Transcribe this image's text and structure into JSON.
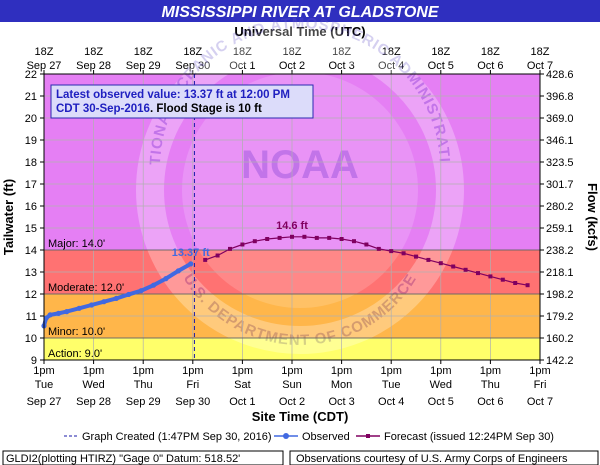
{
  "chart_data": {
    "type": "line",
    "title": "MISSISSIPPI RIVER AT GLADSTONE",
    "top_axis_title": "Universal Time (UTC)",
    "bottom_axis_title": "Site Time (CDT)",
    "ylabel_left": "Tailwater (ft)",
    "ylabel_right": "Flow (kcfs)",
    "ylim": [
      9,
      22
    ],
    "y_ticks": [
      "9",
      "10",
      "11",
      "12",
      "13",
      "14",
      "15",
      "16",
      "17",
      "18",
      "19",
      "20",
      "21",
      "22"
    ],
    "y_right_ticks": [
      "142.2",
      "160.2",
      "179.2",
      "198.2",
      "218.1",
      "238.2",
      "259.1",
      "280.2",
      "301.7",
      "323.5",
      "346.1",
      "369.0",
      "396.8",
      "428.6"
    ],
    "top_ticks": [
      {
        "line1": "18Z",
        "line2": "Sep 27"
      },
      {
        "line1": "18Z",
        "line2": "Sep 28"
      },
      {
        "line1": "18Z",
        "line2": "Sep 29"
      },
      {
        "line1": "18Z",
        "line2": "Sep 30"
      },
      {
        "line1": "18Z",
        "line2": "Oct 1"
      },
      {
        "line1": "18Z",
        "line2": "Oct 2"
      },
      {
        "line1": "18Z",
        "line2": "Oct 3"
      },
      {
        "line1": "18Z",
        "line2": "Oct 4"
      },
      {
        "line1": "18Z",
        "line2": "Oct 5"
      },
      {
        "line1": "18Z",
        "line2": "Oct 6"
      },
      {
        "line1": "18Z",
        "line2": "Oct 7"
      }
    ],
    "bottom_ticks": [
      {
        "line1": "1pm",
        "line2": "Tue",
        "line3": "Sep 27"
      },
      {
        "line1": "1pm",
        "line2": "Wed",
        "line3": "Sep 28"
      },
      {
        "line1": "1pm",
        "line2": "Thu",
        "line3": "Sep 29"
      },
      {
        "line1": "1pm",
        "line2": "Fri",
        "line3": "Sep 30"
      },
      {
        "line1": "1pm",
        "line2": "Sat",
        "line3": "Oct 1"
      },
      {
        "line1": "1pm",
        "line2": "Sun",
        "line3": "Oct 2"
      },
      {
        "line1": "1pm",
        "line2": "Mon",
        "line3": "Oct 3"
      },
      {
        "line1": "1pm",
        "line2": "Tue",
        "line3": "Oct 4"
      },
      {
        "line1": "1pm",
        "line2": "Wed",
        "line3": "Oct 5"
      },
      {
        "line1": "1pm",
        "line2": "Thu",
        "line3": "Oct 6"
      },
      {
        "line1": "1pm",
        "line2": "Fri",
        "line3": "Oct 7"
      }
    ],
    "stage_bands": [
      {
        "name": "Major: 14.0'",
        "from": 14,
        "to": 22,
        "color": "#e57ff4"
      },
      {
        "name": "Moderate: 12.0'",
        "from": 12,
        "to": 14,
        "color": "#ff7272"
      },
      {
        "name": "Minor: 10.0'",
        "from": 10,
        "to": 12,
        "color": "#ffb64a"
      },
      {
        "name": "Action: 9.0'",
        "from": 9,
        "to": 10,
        "color": "#ffff6a"
      }
    ],
    "series": [
      {
        "name": "Observed",
        "color": "#4169e1",
        "marker": "circle",
        "x": [
          "2016-09-27 13:00",
          "2016-09-27 14:00",
          "2016-09-27 16:00",
          "2016-09-27 20:00",
          "2016-09-28 00:00",
          "2016-09-28 06:00",
          "2016-09-28 12:00",
          "2016-09-28 18:00",
          "2016-09-29 00:00",
          "2016-09-29 06:00",
          "2016-09-29 12:00",
          "2016-09-29 18:00",
          "2016-09-30 00:00",
          "2016-09-30 06:00",
          "2016-09-30 12:00"
        ],
        "y": [
          10.55,
          10.9,
          11.05,
          11.12,
          11.2,
          11.35,
          11.5,
          11.65,
          11.8,
          11.98,
          12.15,
          12.4,
          12.7,
          13.05,
          13.37
        ]
      },
      {
        "name": "Forecast (issued 12:24PM Sep 30)",
        "color": "#800060",
        "marker": "square",
        "x": [
          "2016-09-30 19:00",
          "2016-10-01 01:00",
          "2016-10-01 07:00",
          "2016-10-01 13:00",
          "2016-10-01 19:00",
          "2016-10-02 01:00",
          "2016-10-02 07:00",
          "2016-10-02 13:00",
          "2016-10-02 19:00",
          "2016-10-03 01:00",
          "2016-10-03 07:00",
          "2016-10-03 13:00",
          "2016-10-03 19:00",
          "2016-10-04 01:00",
          "2016-10-04 07:00",
          "2016-10-04 13:00",
          "2016-10-04 19:00",
          "2016-10-05 01:00",
          "2016-10-05 07:00",
          "2016-10-05 13:00",
          "2016-10-05 19:00",
          "2016-10-06 01:00",
          "2016-10-06 07:00",
          "2016-10-06 13:00",
          "2016-10-06 19:00",
          "2016-10-07 01:00",
          "2016-10-07 07:00"
        ],
        "y": [
          13.55,
          13.75,
          14.05,
          14.25,
          14.4,
          14.5,
          14.55,
          14.6,
          14.6,
          14.55,
          14.55,
          14.5,
          14.4,
          14.25,
          14.05,
          13.95,
          13.85,
          13.7,
          13.55,
          13.4,
          13.25,
          13.1,
          12.95,
          12.8,
          12.65,
          12.5,
          12.4
        ]
      }
    ],
    "annotations": [
      {
        "text": "13.37 ft",
        "x": "2016-09-30 12:00",
        "y": 13.37,
        "color": "#4169e1"
      },
      {
        "text": "14.6 ft",
        "x": "2016-10-02 13:00",
        "y": 14.6,
        "color": "#800060"
      }
    ],
    "created_marker": {
      "x": "2016-09-30 13:47"
    },
    "info_box": {
      "line1": "Latest observed value: 13.37 ft at 12:00 PM",
      "line2_a": "CDT 30-Sep-2016",
      "line2_b": ". Flood Stage is 10 ft"
    },
    "watermark": {
      "center": "NOAA",
      "ring_top": "NATIONAL OCEANIC AND ATMOSPHERIC ADMINISTRATION",
      "ring_bottom": "U.S. DEPARTMENT OF COMMERCE"
    },
    "legend": {
      "created": "Graph Created (1:47PM Sep 30, 2016)",
      "observed": "Observed",
      "forecast": "Forecast (issued 12:24PM Sep 30)"
    },
    "footer": {
      "left": "GLDI2(plotting HTIRZ) \"Gage 0\" Datum: 518.52'",
      "right": "Observations courtesy of U.S. Army Corps of Engineers"
    }
  }
}
